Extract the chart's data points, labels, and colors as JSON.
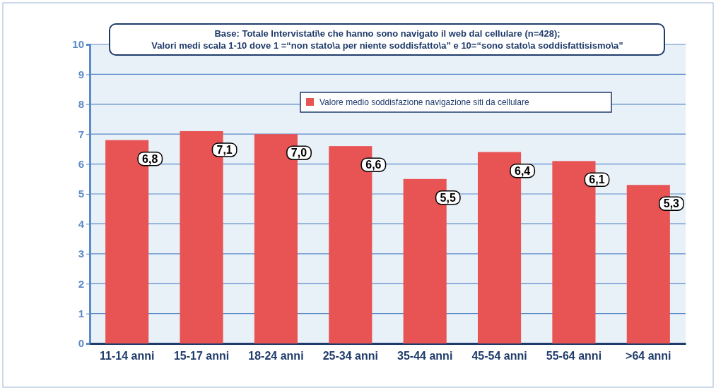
{
  "chart_data": {
    "type": "bar",
    "title": "Base: Totale Intervistati\\e che hanno sono navigato il web dal cellulare (n=428);",
    "subtitle": "Valori medi scala 1-10 dove 1 =“non stato\\a per niente soddisfatto\\a”  e 10=“sono stato\\a soddisfattisismo\\a”",
    "categories": [
      "11-14 anni",
      "15-17 anni",
      "18-24 anni",
      "25-34 anni",
      "35-44 anni",
      "45-54 anni",
      "55-64 anni",
      ">64 anni"
    ],
    "series": [
      {
        "name": "Valore medio soddisfazione navigazione siti da cellulare",
        "color": "#e85454",
        "values": [
          6.8,
          7.1,
          7.0,
          6.6,
          5.5,
          6.4,
          6.1,
          5.3
        ],
        "value_labels": [
          "6,8",
          "7,1",
          "7,0",
          "6,6",
          "5,5",
          "6,4",
          "6,1",
          "5,3"
        ]
      }
    ],
    "ylim": [
      0,
      10
    ],
    "yticks": [
      0,
      1,
      2,
      3,
      4,
      5,
      6,
      7,
      8,
      9,
      10
    ],
    "grid": "y",
    "legend": "top right"
  }
}
